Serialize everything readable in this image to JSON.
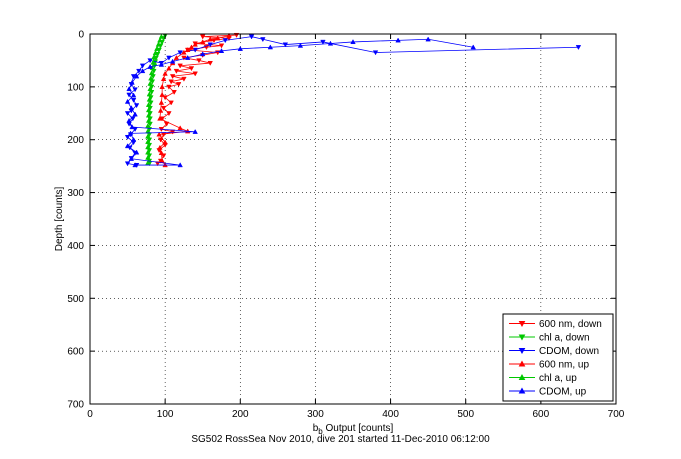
{
  "caption": "SG502 RossSea Nov 2010, dive 201 started 11-Dec-2010 06:12:00",
  "chart_data": {
    "type": "scatter",
    "title": "",
    "xlabel": "b_b Output [counts]",
    "xlabel_main": "b",
    "xlabel_sub": "b",
    "xlabel_rest": " Output [counts]",
    "ylabel": "Depth [counts]",
    "xlim": [
      0,
      700
    ],
    "ylim": [
      0,
      700
    ],
    "y_inverted": true,
    "grid": true,
    "grid_style": "dotted",
    "legend_position": "bottom-right",
    "x_ticks": [
      0,
      100,
      200,
      300,
      400,
      500,
      600,
      700
    ],
    "y_ticks": [
      0,
      100,
      200,
      300,
      400,
      500,
      600,
      700
    ],
    "series": [
      {
        "name": "600 nm, down",
        "color": "#ff0000",
        "marker": "triangle-down",
        "points": [
          [
            195,
            2
          ],
          [
            150,
            5
          ],
          [
            185,
            8
          ],
          [
            165,
            12
          ],
          [
            140,
            18
          ],
          [
            175,
            22
          ],
          [
            155,
            25
          ],
          [
            130,
            30
          ],
          [
            170,
            35
          ],
          [
            150,
            40
          ],
          [
            125,
            45
          ],
          [
            145,
            50
          ],
          [
            160,
            55
          ],
          [
            120,
            60
          ],
          [
            135,
            65
          ],
          [
            115,
            70
          ],
          [
            140,
            75
          ],
          [
            110,
            80
          ],
          [
            125,
            85
          ],
          [
            108,
            90
          ],
          [
            118,
            95
          ],
          [
            105,
            100
          ],
          [
            112,
            110
          ],
          [
            100,
            120
          ],
          [
            108,
            130
          ],
          [
            98,
            140
          ],
          [
            105,
            150
          ],
          [
            96,
            160
          ],
          [
            102,
            170
          ],
          [
            95,
            180
          ],
          [
            110,
            185
          ],
          [
            98,
            190
          ],
          [
            94,
            200
          ],
          [
            100,
            210
          ],
          [
            92,
            220
          ],
          [
            98,
            230
          ],
          [
            94,
            240
          ],
          [
            90,
            245
          ]
        ]
      },
      {
        "name": "chl a, down",
        "color": "#00c800",
        "marker": "triangle-down",
        "points": [
          [
            100,
            3
          ],
          [
            98,
            8
          ],
          [
            96,
            15
          ],
          [
            94,
            22
          ],
          [
            92,
            30
          ],
          [
            90,
            38
          ],
          [
            88,
            45
          ],
          [
            87,
            52
          ],
          [
            86,
            60
          ],
          [
            85,
            70
          ],
          [
            84,
            80
          ],
          [
            83,
            90
          ],
          [
            82,
            100
          ],
          [
            82,
            110
          ],
          [
            81,
            120
          ],
          [
            81,
            130
          ],
          [
            80,
            140
          ],
          [
            80,
            150
          ],
          [
            80,
            160
          ],
          [
            80,
            170
          ],
          [
            79,
            180
          ],
          [
            79,
            190
          ],
          [
            79,
            200
          ],
          [
            79,
            210
          ],
          [
            79,
            220
          ],
          [
            79,
            230
          ],
          [
            79,
            240
          ],
          [
            79,
            245
          ]
        ]
      },
      {
        "name": "CDOM, down",
        "color": "#0000ff",
        "marker": "triangle-down",
        "points": [
          [
            650,
            25
          ],
          [
            380,
            35
          ],
          [
            310,
            15
          ],
          [
            260,
            20
          ],
          [
            230,
            10
          ],
          [
            215,
            5
          ],
          [
            180,
            12
          ],
          [
            160,
            20
          ],
          [
            140,
            30
          ],
          [
            120,
            35
          ],
          [
            105,
            45
          ],
          [
            95,
            55
          ],
          [
            80,
            50
          ],
          [
            70,
            60
          ],
          [
            65,
            70
          ],
          [
            58,
            80
          ],
          [
            55,
            95
          ],
          [
            60,
            105
          ],
          [
            52,
            115
          ],
          [
            58,
            125
          ],
          [
            62,
            135
          ],
          [
            55,
            145
          ],
          [
            50,
            150
          ],
          [
            57,
            160
          ],
          [
            52,
            170
          ],
          [
            60,
            180
          ],
          [
            54,
            190
          ],
          [
            50,
            195
          ],
          [
            58,
            205
          ],
          [
            53,
            215
          ],
          [
            60,
            225
          ],
          [
            55,
            235
          ],
          [
            50,
            245
          ],
          [
            62,
            248
          ]
        ]
      },
      {
        "name": "600 nm, up",
        "color": "#ff0000",
        "marker": "triangle-up",
        "points": [
          [
            185,
            3
          ],
          [
            170,
            8
          ],
          [
            160,
            10
          ],
          [
            150,
            15
          ],
          [
            140,
            20
          ],
          [
            135,
            25
          ],
          [
            130,
            30
          ],
          [
            125,
            35
          ],
          [
            115,
            45
          ],
          [
            110,
            55
          ],
          [
            105,
            65
          ],
          [
            100,
            75
          ],
          [
            98,
            85
          ],
          [
            96,
            100
          ],
          [
            96,
            115
          ],
          [
            95,
            130
          ],
          [
            94,
            145
          ],
          [
            93,
            160
          ],
          [
            120,
            178
          ],
          [
            130,
            184
          ],
          [
            92,
            190
          ],
          [
            100,
            205
          ],
          [
            93,
            215
          ],
          [
            95,
            225
          ],
          [
            96,
            240
          ],
          [
            100,
            248
          ]
        ]
      },
      {
        "name": "chl a, up",
        "color": "#00c800",
        "marker": "triangle-up",
        "points": [
          [
            95,
            5
          ],
          [
            93,
            12
          ],
          [
            91,
            20
          ],
          [
            89,
            28
          ],
          [
            87,
            36
          ],
          [
            85,
            44
          ],
          [
            84,
            54
          ],
          [
            83,
            64
          ],
          [
            82,
            74
          ],
          [
            81,
            84
          ],
          [
            80,
            94
          ],
          [
            80,
            104
          ],
          [
            79,
            114
          ],
          [
            79,
            124
          ],
          [
            78,
            134
          ],
          [
            78,
            144
          ],
          [
            78,
            154
          ],
          [
            78,
            164
          ],
          [
            77,
            174
          ],
          [
            77,
            184
          ],
          [
            77,
            194
          ],
          [
            77,
            204
          ],
          [
            77,
            214
          ],
          [
            77,
            224
          ],
          [
            77,
            234
          ],
          [
            77,
            244
          ]
        ]
      },
      {
        "name": "CDOM, up",
        "color": "#0000ff",
        "marker": "triangle-up",
        "points": [
          [
            510,
            25
          ],
          [
            450,
            10
          ],
          [
            410,
            12
          ],
          [
            350,
            15
          ],
          [
            320,
            18
          ],
          [
            280,
            22
          ],
          [
            240,
            25
          ],
          [
            200,
            28
          ],
          [
            175,
            32
          ],
          [
            150,
            38
          ],
          [
            130,
            45
          ],
          [
            110,
            52
          ],
          [
            95,
            58
          ],
          [
            80,
            62
          ],
          [
            70,
            70
          ],
          [
            62,
            80
          ],
          [
            56,
            92
          ],
          [
            52,
            104
          ],
          [
            58,
            116
          ],
          [
            50,
            128
          ],
          [
            55,
            140
          ],
          [
            60,
            152
          ],
          [
            52,
            164
          ],
          [
            56,
            176
          ],
          [
            140,
            185
          ],
          [
            54,
            188
          ],
          [
            58,
            200
          ],
          [
            50,
            212
          ],
          [
            62,
            224
          ],
          [
            55,
            236
          ],
          [
            120,
            248
          ],
          [
            60,
            248
          ]
        ]
      }
    ]
  }
}
